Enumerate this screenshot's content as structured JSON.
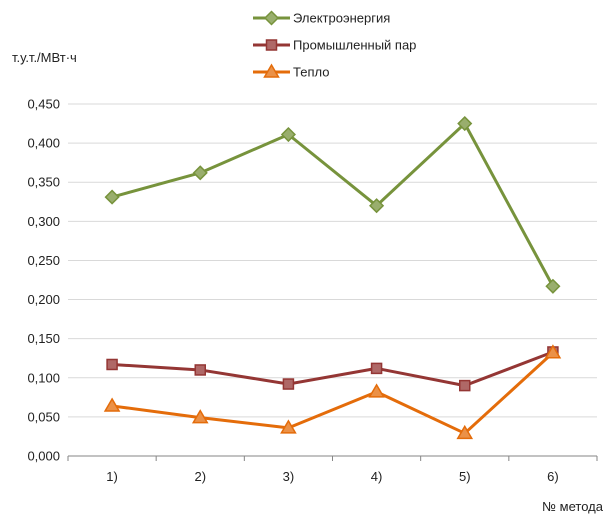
{
  "chart_data": {
    "type": "line",
    "ylabel": "т.у.т./МВт·ч",
    "xlabel": "№ метода",
    "categories": [
      "1)",
      "2)",
      "3)",
      "4)",
      "5)",
      "6)"
    ],
    "ylim": [
      0,
      0.45
    ],
    "yticks": [
      "0,000",
      "0,050",
      "0,100",
      "0,150",
      "0,200",
      "0,250",
      "0,300",
      "0,350",
      "0,400",
      "0,450"
    ],
    "grid": true,
    "legend_position": "top",
    "series": [
      {
        "name": "Электроэнергия",
        "values": [
          0.331,
          0.362,
          0.411,
          0.32,
          0.425,
          0.217
        ],
        "color": "#77933C",
        "marker": "diamond"
      },
      {
        "name": "Промышленный пар",
        "values": [
          0.117,
          0.11,
          0.092,
          0.112,
          0.09,
          0.133
        ],
        "color": "#943634",
        "marker": "square"
      },
      {
        "name": "Тепло",
        "values": [
          0.064,
          0.049,
          0.036,
          0.082,
          0.029,
          0.132
        ],
        "color": "#E46C0A",
        "marker": "triangle"
      }
    ]
  }
}
